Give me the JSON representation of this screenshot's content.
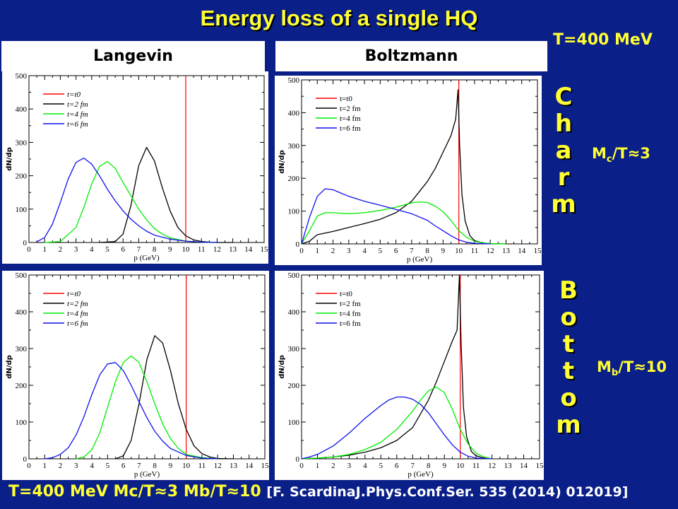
{
  "title": "Energy loss of a single HQ",
  "temperature": "T=400 MeV",
  "columns": [
    "Langevin",
    "Boltzmann"
  ],
  "rows": [
    {
      "word": [
        "C",
        "h",
        "a",
        "r",
        "m"
      ],
      "ratio_prefix": "M",
      "ratio_sub": "c",
      "ratio_suffix": "/T≈3"
    },
    {
      "word": [
        "B",
        "o",
        "t",
        "t",
        "o",
        "m"
      ],
      "ratio_prefix": "M",
      "ratio_sub": "b",
      "ratio_suffix": "/T≈10"
    }
  ],
  "footer": {
    "main": "T=400 MeV Mc/T≈3  Mb/T≈10 ",
    "ref": "[F. ScardinaJ.Phys.Conf.Ser. 535 (2014) 012019]"
  },
  "colors": {
    "t0": "#ff0000",
    "t2": "#000000",
    "t4": "#00ee00",
    "t6": "#1111ee",
    "title": "#ffff33",
    "background": "#0a1f88"
  },
  "chart_data": [
    {
      "type": "line",
      "id": "langevin-charm",
      "xlabel": "p (GeV)",
      "ylabel": "dN/dp",
      "xlim": [
        0,
        15
      ],
      "ylim": [
        0,
        500
      ],
      "xticks": [
        0,
        1,
        2,
        3,
        4,
        5,
        6,
        7,
        8,
        9,
        10,
        11,
        12,
        13,
        14,
        15
      ],
      "yticks": [
        0,
        100,
        200,
        300,
        400,
        500
      ],
      "legend": "top-left",
      "vline": {
        "name": "t=t0",
        "x": 10
      },
      "series": [
        {
          "name": "t=2 fm",
          "x": [
            4.5,
            5.5,
            6,
            6.5,
            7,
            7.5,
            8,
            8.5,
            9,
            9.5,
            10,
            10.5,
            11,
            11.5,
            12,
            13
          ],
          "y": [
            0,
            3,
            25,
            110,
            230,
            285,
            245,
            165,
            95,
            45,
            20,
            8,
            3,
            1,
            0,
            0
          ]
        },
        {
          "name": "t=4 fm",
          "x": [
            1,
            2,
            3,
            3.5,
            4,
            4.5,
            5,
            5.5,
            6,
            6.5,
            7,
            7.5,
            8,
            8.5,
            9,
            10,
            11,
            12
          ],
          "y": [
            0,
            3,
            45,
            105,
            175,
            228,
            243,
            222,
            180,
            140,
            100,
            68,
            42,
            25,
            14,
            4,
            1,
            0
          ]
        },
        {
          "name": "t=6 fm",
          "x": [
            0.5,
            1,
            1.5,
            2,
            2.5,
            3,
            3.5,
            4,
            4.5,
            5,
            5.5,
            6,
            6.5,
            7,
            7.5,
            8,
            9,
            10,
            11,
            12
          ],
          "y": [
            2,
            15,
            55,
            120,
            190,
            240,
            253,
            235,
            200,
            160,
            125,
            95,
            70,
            50,
            34,
            22,
            10,
            4,
            1,
            0
          ]
        }
      ]
    },
    {
      "type": "line",
      "id": "boltzmann-charm",
      "xlabel": "p (GeV)",
      "ylabel": "dN/dp",
      "xlim": [
        0,
        15
      ],
      "ylim": [
        0,
        500
      ],
      "xticks": [
        0,
        1,
        2,
        3,
        4,
        5,
        6,
        7,
        8,
        9,
        10,
        11,
        12,
        13,
        14,
        15
      ],
      "yticks": [
        0,
        100,
        200,
        300,
        400,
        500
      ],
      "legend": "top-left",
      "vline": {
        "name": "t=t0",
        "x": 10
      },
      "series": [
        {
          "name": "t=2 fm",
          "x": [
            0,
            0.5,
            1,
            2,
            3,
            4,
            5,
            6,
            7,
            8,
            8.5,
            9,
            9.5,
            9.8,
            9.95,
            10.05,
            10.2,
            10.4,
            10.7,
            11,
            11.5,
            12,
            13
          ],
          "y": [
            0,
            8,
            28,
            38,
            50,
            62,
            75,
            95,
            130,
            190,
            230,
            280,
            330,
            380,
            470,
            300,
            150,
            70,
            25,
            10,
            3,
            1,
            0
          ]
        },
        {
          "name": "t=4 fm",
          "x": [
            0,
            0.5,
            1,
            1.5,
            2,
            3,
            4,
            5,
            6,
            7,
            7.5,
            8,
            8.5,
            9,
            9.5,
            10,
            10.5,
            11,
            11.5,
            12,
            13
          ],
          "y": [
            0,
            40,
            85,
            95,
            95,
            92,
            95,
            102,
            112,
            125,
            128,
            126,
            115,
            98,
            72,
            40,
            20,
            8,
            3,
            1,
            0
          ]
        },
        {
          "name": "t=6 fm",
          "x": [
            0,
            0.5,
            1,
            1.5,
            2,
            2.5,
            3,
            4,
            5,
            6,
            7,
            8,
            8.5,
            9,
            9.5,
            10,
            10.5,
            11,
            12
          ],
          "y": [
            0,
            80,
            145,
            168,
            165,
            155,
            145,
            130,
            118,
            105,
            92,
            72,
            55,
            40,
            25,
            12,
            5,
            2,
            0
          ]
        }
      ]
    },
    {
      "type": "line",
      "id": "langevin-bottom",
      "xlabel": "p (GeV)",
      "ylabel": "dN/dp",
      "xlim": [
        0,
        15
      ],
      "ylim": [
        0,
        500
      ],
      "xticks": [
        0,
        1,
        2,
        3,
        4,
        5,
        6,
        7,
        8,
        9,
        10,
        11,
        12,
        13,
        14,
        15
      ],
      "yticks": [
        0,
        100,
        200,
        300,
        400,
        500
      ],
      "legend": "top-left",
      "vline": {
        "name": "t=t0",
        "x": 10
      },
      "series": [
        {
          "name": "t=2 fm",
          "x": [
            5.5,
            6,
            6.5,
            7,
            7.5,
            8,
            8.5,
            9,
            9.5,
            10,
            10.5,
            11,
            11.5,
            12,
            13
          ],
          "y": [
            0,
            8,
            50,
            150,
            270,
            335,
            315,
            240,
            150,
            80,
            35,
            14,
            5,
            1,
            0
          ]
        },
        {
          "name": "t=4 fm",
          "x": [
            3,
            3.5,
            4,
            4.5,
            5,
            5.5,
            6,
            6.5,
            7,
            7.5,
            8,
            8.5,
            9,
            9.5,
            10,
            11,
            12
          ],
          "y": [
            0,
            5,
            25,
            70,
            140,
            210,
            262,
            280,
            262,
            210,
            150,
            95,
            55,
            28,
            12,
            3,
            0
          ]
        },
        {
          "name": "t=6 fm",
          "x": [
            1,
            1.5,
            2,
            2.5,
            3,
            3.5,
            4,
            4.5,
            5,
            5.5,
            6,
            6.5,
            7,
            7.5,
            8,
            8.5,
            9,
            10,
            11,
            12
          ],
          "y": [
            0,
            3,
            12,
            30,
            65,
            115,
            175,
            228,
            258,
            262,
            240,
            200,
            155,
            112,
            75,
            48,
            28,
            9,
            2,
            0
          ]
        }
      ]
    },
    {
      "type": "line",
      "id": "boltzmann-bottom",
      "xlabel": "p (GeV)",
      "ylabel": "dN/dp",
      "xlim": [
        0,
        15
      ],
      "ylim": [
        0,
        500
      ],
      "xticks": [
        0,
        1,
        2,
        3,
        4,
        5,
        6,
        7,
        8,
        9,
        10,
        11,
        12,
        13,
        14,
        15
      ],
      "yticks": [
        0,
        100,
        200,
        300,
        400,
        500
      ],
      "legend": "top-left",
      "vline": {
        "name": "t=t0",
        "x": 10
      },
      "series": [
        {
          "name": "t=2 fm",
          "x": [
            0,
            1,
            2,
            3,
            4,
            5,
            6,
            7,
            8,
            8.5,
            9,
            9.5,
            9.8,
            9.95,
            10.05,
            10.2,
            10.4,
            10.7,
            11,
            11.5,
            12
          ],
          "y": [
            0,
            2,
            5,
            10,
            18,
            30,
            50,
            85,
            160,
            210,
            265,
            320,
            350,
            500,
            320,
            140,
            60,
            20,
            8,
            2,
            0
          ]
        },
        {
          "name": "t=4 fm",
          "x": [
            0,
            1,
            2,
            3,
            4,
            5,
            6,
            7,
            7.5,
            8,
            8.5,
            9,
            9.5,
            10,
            10.5,
            11,
            11.5,
            12
          ],
          "y": [
            0,
            2,
            5,
            12,
            25,
            45,
            80,
            130,
            160,
            185,
            195,
            180,
            135,
            80,
            40,
            15,
            5,
            0
          ]
        },
        {
          "name": "t=6 fm",
          "x": [
            0,
            0.5,
            1,
            2,
            3,
            4,
            5,
            5.5,
            6,
            6.5,
            7,
            7.5,
            8,
            8.5,
            9,
            9.5,
            10,
            10.5,
            11,
            12
          ],
          "y": [
            0,
            5,
            12,
            35,
            70,
            110,
            145,
            160,
            168,
            168,
            162,
            148,
            125,
            95,
            65,
            38,
            18,
            7,
            2,
            0
          ]
        }
      ]
    }
  ]
}
